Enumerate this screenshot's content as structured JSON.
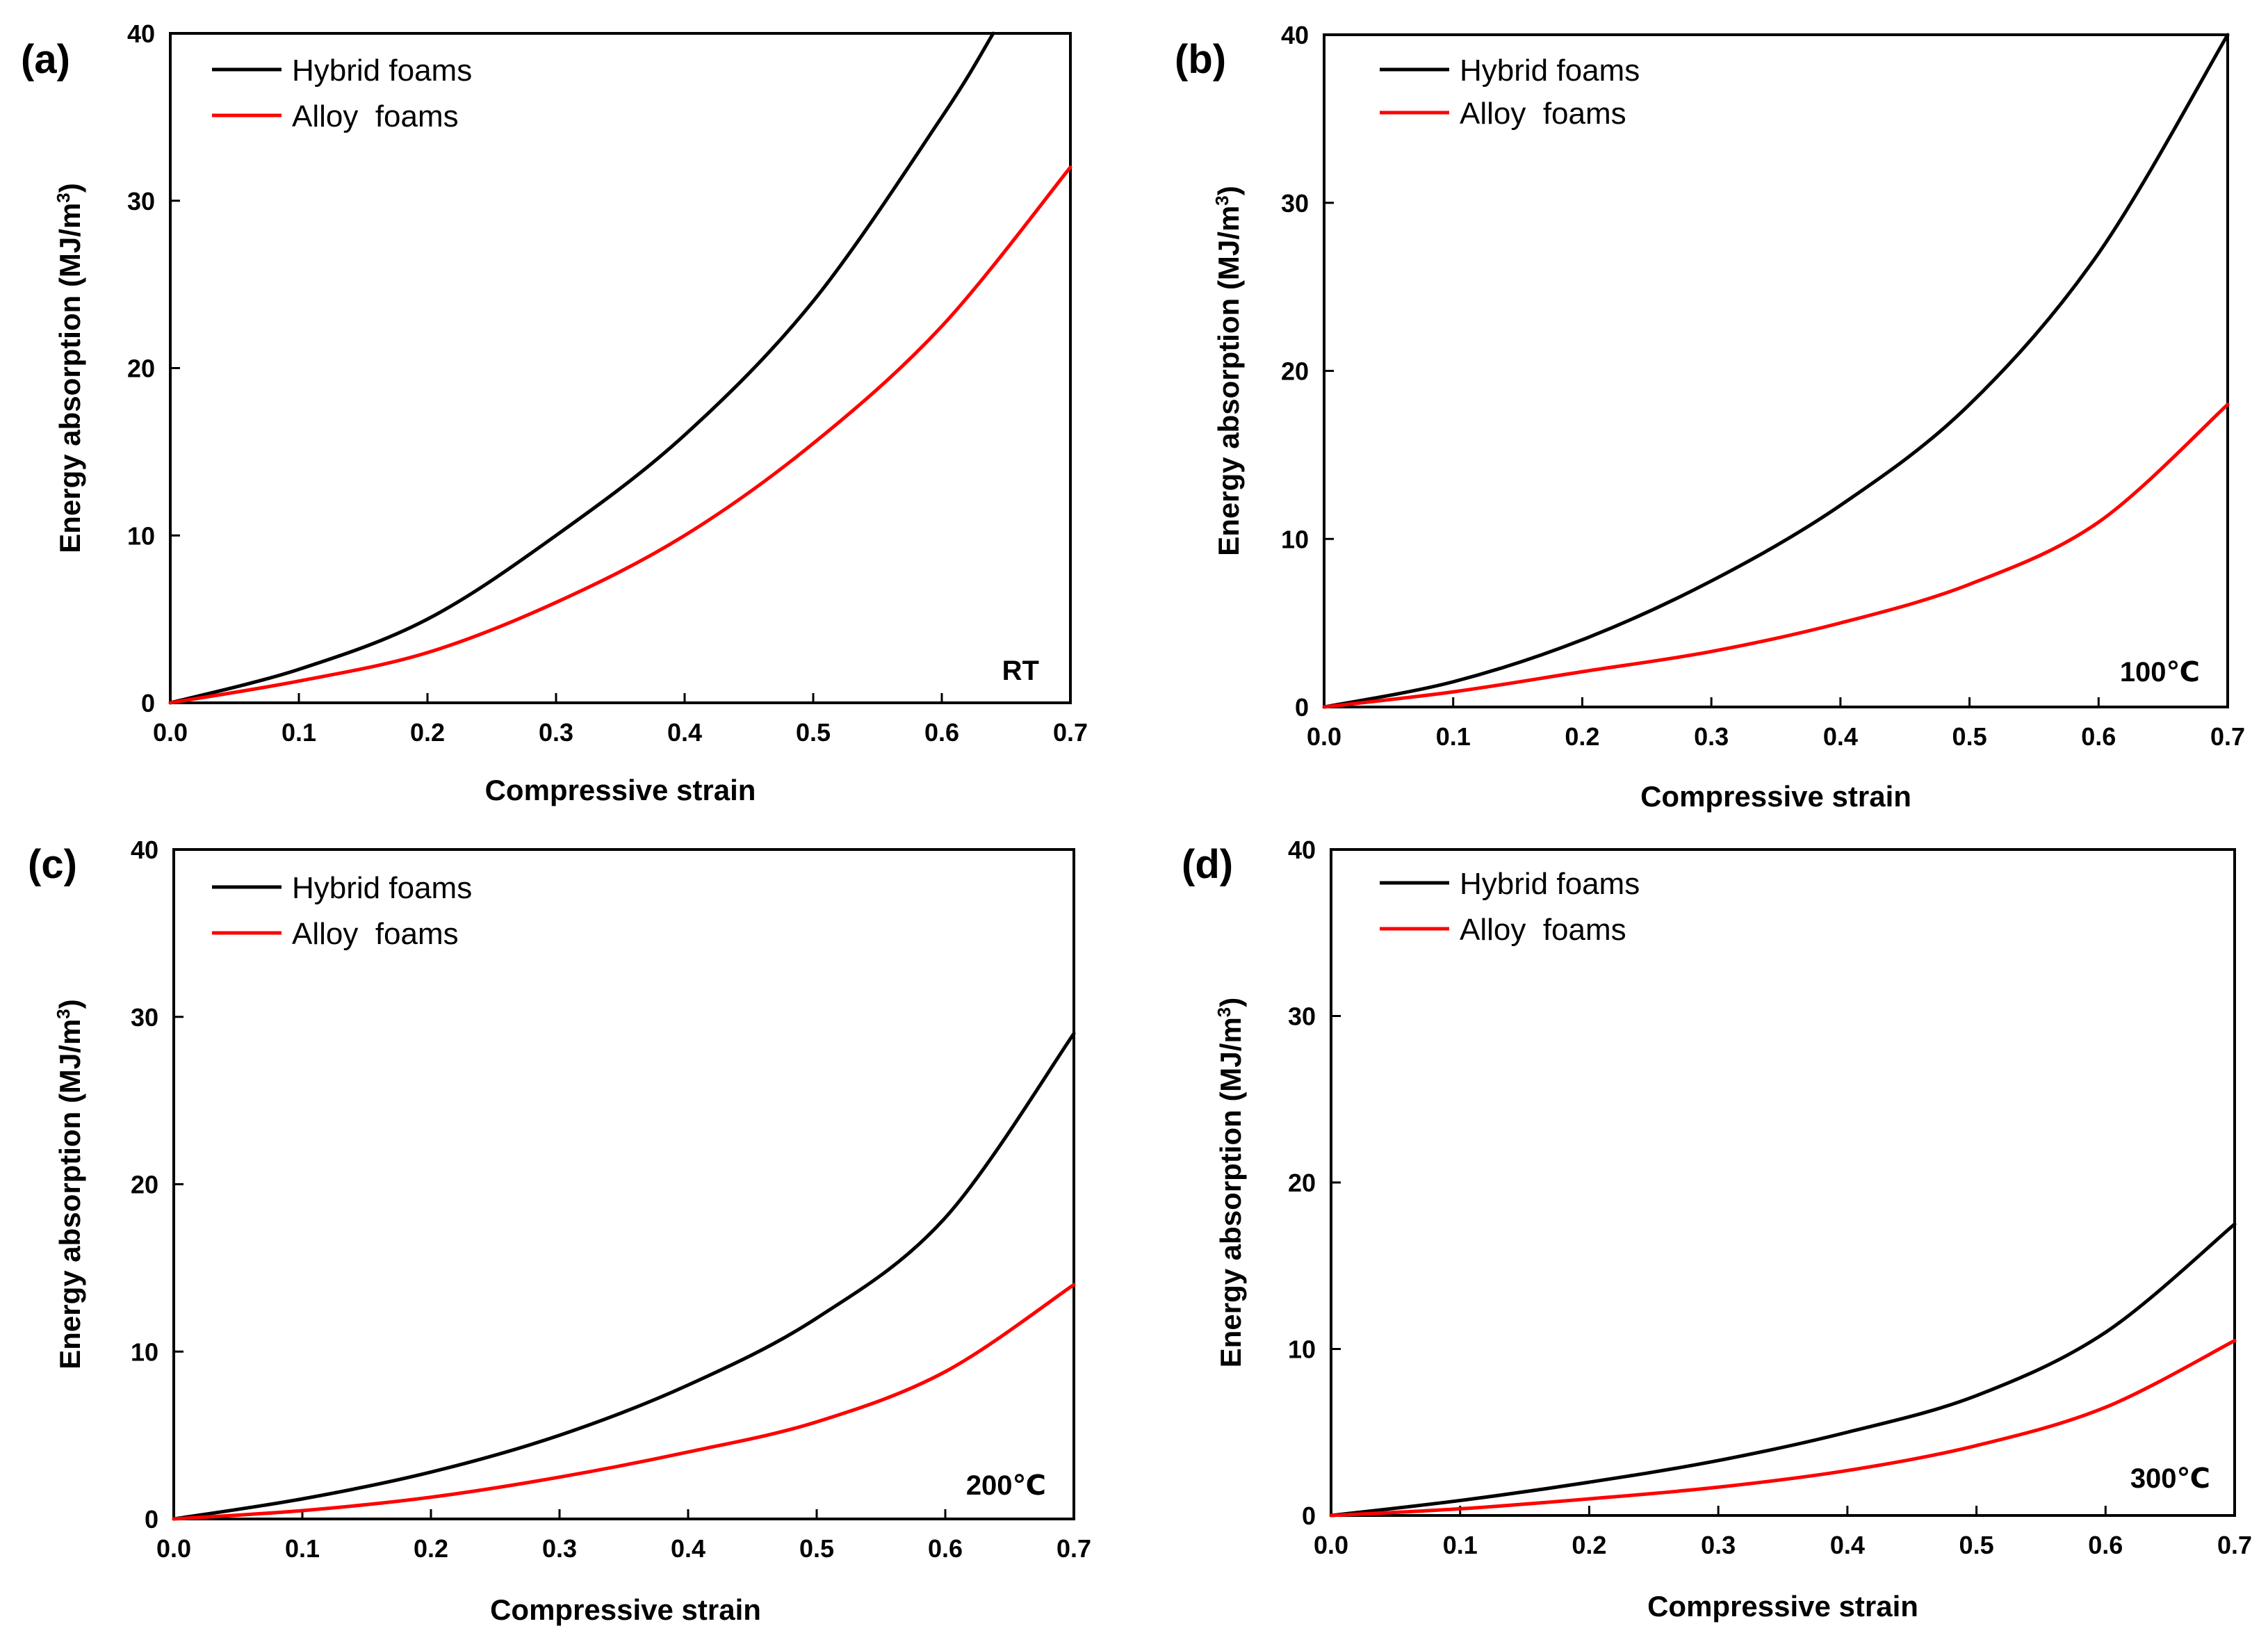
{
  "figure": {
    "colors": {
      "hybrid": "#000000",
      "alloy": "#ff0000",
      "axis": "#000000"
    },
    "panels": [
      {
        "label": "(a)",
        "condition": "RT"
      },
      {
        "label": "(b)",
        "condition": "100℃"
      },
      {
        "label": "(c)",
        "condition": "200℃"
      },
      {
        "label": "(d)",
        "condition": "300℃"
      }
    ]
  },
  "chart_data": [
    {
      "type": "line",
      "panel": "(a)",
      "annotation": "RT",
      "xlabel": "Compressive strain",
      "ylabel": "Energy absorption (MJ/m3)",
      "xlim": [
        0,
        0.7
      ],
      "ylim": [
        0,
        40
      ],
      "xticks": [
        "0.0",
        "0.1",
        "0.2",
        "0.3",
        "0.4",
        "0.5",
        "0.6",
        "0.7"
      ],
      "yticks": [
        "0",
        "10",
        "20",
        "30",
        "40"
      ],
      "legend": {
        "position": "top-left",
        "entries": [
          "Hybrid foams",
          "Alloy  foams"
        ]
      },
      "x": [
        0.0,
        0.1,
        0.2,
        0.3,
        0.4,
        0.5,
        0.6,
        0.7
      ],
      "series": [
        {
          "name": "Hybrid foams",
          "x": [
            0.0,
            0.1,
            0.2,
            0.3,
            0.4,
            0.5,
            0.6,
            0.64
          ],
          "values": [
            0,
            2,
            5,
            10,
            16,
            24,
            35,
            40
          ]
        },
        {
          "name": "Alloy  foams",
          "x": [
            0.0,
            0.1,
            0.2,
            0.3,
            0.4,
            0.5,
            0.6,
            0.7
          ],
          "values": [
            0,
            1.3,
            3,
            6,
            10,
            15.5,
            22.5,
            32
          ]
        }
      ]
    },
    {
      "type": "line",
      "panel": "(b)",
      "annotation": "100℃",
      "xlabel": "Compressive strain",
      "ylabel": "Energy absorption (MJ/m3)",
      "xlim": [
        0,
        0.7
      ],
      "ylim": [
        0,
        40
      ],
      "xticks": [
        "0.0",
        "0.1",
        "0.2",
        "0.3",
        "0.4",
        "0.5",
        "0.6",
        "0.7"
      ],
      "yticks": [
        "0",
        "10",
        "20",
        "30",
        "40"
      ],
      "legend": {
        "position": "top-left",
        "entries": [
          "Hybrid foams",
          "Alloy  foams"
        ]
      },
      "x": [
        0.0,
        0.1,
        0.2,
        0.3,
        0.4,
        0.5,
        0.6,
        0.7
      ],
      "series": [
        {
          "name": "Hybrid foams",
          "x": [
            0.0,
            0.1,
            0.2,
            0.3,
            0.4,
            0.5,
            0.6,
            0.7
          ],
          "values": [
            0,
            1.5,
            4,
            7.5,
            12,
            18,
            27,
            40
          ]
        },
        {
          "name": "Alloy  foams",
          "x": [
            0.0,
            0.1,
            0.2,
            0.3,
            0.4,
            0.5,
            0.6,
            0.7
          ],
          "values": [
            0,
            0.9,
            2.1,
            3.3,
            5,
            7.3,
            11,
            18
          ]
        }
      ]
    },
    {
      "type": "line",
      "panel": "(c)",
      "annotation": "200℃",
      "xlabel": "Compressive strain",
      "ylabel": "Energy absorption (MJ/m3)",
      "xlim": [
        0,
        0.7
      ],
      "ylim": [
        0,
        40
      ],
      "xticks": [
        "0.0",
        "0.1",
        "0.2",
        "0.3",
        "0.4",
        "0.5",
        "0.6",
        "0.7"
      ],
      "yticks": [
        "0",
        "10",
        "20",
        "30",
        "40"
      ],
      "legend": {
        "position": "top-left",
        "entries": [
          "Hybrid foams",
          "Alloy  foams"
        ]
      },
      "x": [
        0.0,
        0.1,
        0.2,
        0.3,
        0.4,
        0.5,
        0.6,
        0.7
      ],
      "series": [
        {
          "name": "Hybrid foams",
          "x": [
            0.0,
            0.1,
            0.2,
            0.3,
            0.4,
            0.5,
            0.6,
            0.7
          ],
          "values": [
            0,
            1.2,
            2.8,
            5,
            8,
            12,
            18,
            29
          ]
        },
        {
          "name": "Alloy  foams",
          "x": [
            0.0,
            0.1,
            0.2,
            0.3,
            0.4,
            0.5,
            0.6,
            0.7
          ],
          "values": [
            0,
            0.5,
            1.3,
            2.5,
            4,
            5.8,
            8.8,
            14
          ]
        }
      ]
    },
    {
      "type": "line",
      "panel": "(d)",
      "annotation": "300℃",
      "xlabel": "Compressive strain",
      "ylabel": "Energy absorption (MJ/m3)",
      "xlim": [
        0,
        0.7
      ],
      "ylim": [
        0,
        40
      ],
      "xticks": [
        "0.0",
        "0.1",
        "0.2",
        "0.3",
        "0.4",
        "0.5",
        "0.6",
        "0.7"
      ],
      "yticks": [
        "0",
        "10",
        "20",
        "30",
        "40"
      ],
      "legend": {
        "position": "top-left",
        "entries": [
          "Hybrid foams",
          "Alloy  foams"
        ]
      },
      "x": [
        0.0,
        0.1,
        0.2,
        0.3,
        0.4,
        0.5,
        0.6,
        0.7
      ],
      "series": [
        {
          "name": "Hybrid foams",
          "x": [
            0.0,
            0.1,
            0.2,
            0.3,
            0.4,
            0.5,
            0.6,
            0.7
          ],
          "values": [
            0,
            0.9,
            2,
            3.3,
            5,
            7.2,
            11,
            17.5
          ]
        },
        {
          "name": "Alloy  foams",
          "x": [
            0.0,
            0.1,
            0.2,
            0.3,
            0.4,
            0.5,
            0.6,
            0.7
          ],
          "values": [
            0,
            0.4,
            1,
            1.7,
            2.7,
            4.2,
            6.5,
            10.5
          ]
        }
      ]
    }
  ]
}
